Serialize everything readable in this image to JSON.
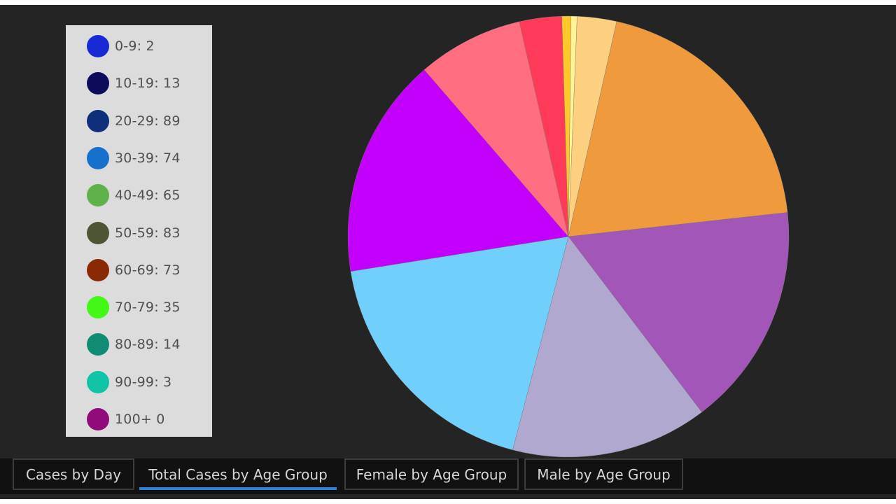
{
  "legend": {
    "items": [
      {
        "label": "0-9:  2",
        "color": "#1729d4"
      },
      {
        "label": "10-19:  13",
        "color": "#0c0c5a"
      },
      {
        "label": "20-29:  89",
        "color": "#0e2f7a"
      },
      {
        "label": "30-39:  74",
        "color": "#1670cc"
      },
      {
        "label": "40-49:  65",
        "color": "#5eb249"
      },
      {
        "label": "50-59:  83",
        "color": "#4e5532"
      },
      {
        "label": "60-69:  73",
        "color": "#8a2a05"
      },
      {
        "label": "70-79:  35",
        "color": "#41f816"
      },
      {
        "label": "80-89:  14",
        "color": "#118c74"
      },
      {
        "label": "90-99:  3",
        "color": "#11c4a8"
      },
      {
        "label": "100+  0",
        "color": "#900c7a"
      }
    ]
  },
  "tabs": [
    {
      "label": "Cases by Day",
      "active": false
    },
    {
      "label": "Total Cases by Age Group",
      "active": true
    },
    {
      "label": "Female by Age Group",
      "active": false
    },
    {
      "label": "Male by Age Group",
      "active": false
    }
  ],
  "chart_data": {
    "type": "pie",
    "categories": [
      "0-9",
      "10-19",
      "20-29",
      "30-39",
      "40-49",
      "50-59",
      "60-69",
      "70-79",
      "80-89",
      "90-99",
      "100+"
    ],
    "values": [
      2,
      13,
      89,
      74,
      65,
      83,
      73,
      35,
      14,
      3,
      0
    ],
    "slice_colors": [
      "#fff394",
      "#fcd07e",
      "#f09a3e",
      "#a156b8",
      "#b1a8d0",
      "#71cffc",
      "#c400fd",
      "#fe6e80",
      "#ff3a59",
      "#ffc82a",
      "#fff394"
    ],
    "legend_position": "left"
  }
}
